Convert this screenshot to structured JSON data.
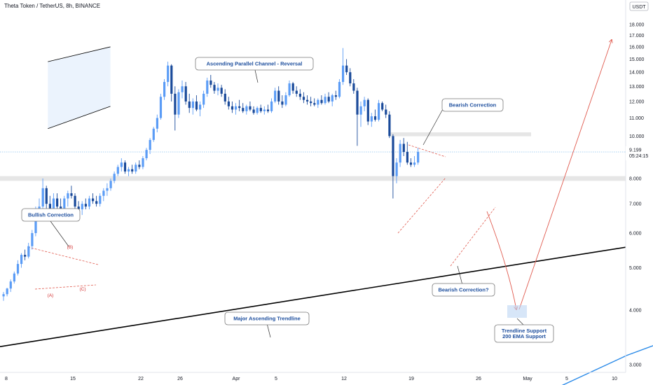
{
  "title": "Theta Token / TetherUS, 8h, BINANCE",
  "currency_badge": "USDT",
  "price_tag": {
    "price": "9.199",
    "countdown": "05:24:15"
  },
  "colors": {
    "bull": "#5b9cf6",
    "bear": "#1a4a9a",
    "trendline": "#000000",
    "ema": "#2a8ae8",
    "projection": "#e05a4e",
    "channel_fill": "#e6f0fc",
    "zone": "#e6e6e6",
    "annotation_text": "#1e4f9e"
  },
  "annotations": {
    "bullish_correction": "Bullish Correction",
    "ascending_channel": "Ascending Parallel Channel - Reversal",
    "bearish_correction": "Bearish Correction",
    "bearish_correction_q": "Bearish Correction?",
    "major_trendline": "Major Ascending Trendline",
    "trendline_support_1": "Trendline Support",
    "trendline_support_2": "200 EMA Support"
  },
  "pattern_labels": {
    "a": "(A)",
    "b": "(B)",
    "c": "(C)"
  },
  "chart_data": {
    "type": "candlestick",
    "title": "Theta Token / TetherUS, 8h, BINANCE",
    "y_scale": "log",
    "ylim": [
      2.9,
      18.8
    ],
    "y_ticks": [
      "18.000",
      "17.000",
      "16.000",
      "15.000",
      "14.000",
      "13.000",
      "12.000",
      "11.000",
      "10.000",
      "9.000",
      "8.000",
      "7.000",
      "6.000",
      "5.000",
      "4.000",
      "3.000"
    ],
    "x_ticks": [
      "8",
      "15",
      "22",
      "26",
      "Apr",
      "5",
      "12",
      "19",
      "26",
      "May",
      "5",
      "10"
    ],
    "grid": false,
    "last_price": 9.199,
    "candles": [
      {
        "o": 4.3,
        "h": 4.4,
        "l": 4.2,
        "c": 4.35
      },
      {
        "o": 4.35,
        "h": 4.5,
        "l": 4.3,
        "c": 4.48
      },
      {
        "o": 4.48,
        "h": 4.7,
        "l": 4.4,
        "c": 4.65
      },
      {
        "o": 4.65,
        "h": 4.9,
        "l": 4.6,
        "c": 4.85
      },
      {
        "o": 4.85,
        "h": 5.2,
        "l": 4.8,
        "c": 5.1
      },
      {
        "o": 5.1,
        "h": 5.4,
        "l": 5.0,
        "c": 5.35
      },
      {
        "o": 5.35,
        "h": 5.5,
        "l": 5.2,
        "c": 5.3
      },
      {
        "o": 5.3,
        "h": 5.7,
        "l": 5.25,
        "c": 5.6
      },
      {
        "o": 5.6,
        "h": 6.1,
        "l": 5.5,
        "c": 6.0
      },
      {
        "o": 6.0,
        "h": 6.9,
        "l": 5.9,
        "c": 6.7
      },
      {
        "o": 6.7,
        "h": 7.2,
        "l": 6.4,
        "c": 6.9
      },
      {
        "o": 6.9,
        "h": 8.0,
        "l": 6.7,
        "c": 7.6
      },
      {
        "o": 7.6,
        "h": 7.7,
        "l": 6.8,
        "c": 7.0
      },
      {
        "o": 7.0,
        "h": 7.3,
        "l": 6.5,
        "c": 6.6
      },
      {
        "o": 6.6,
        "h": 7.4,
        "l": 6.5,
        "c": 7.2
      },
      {
        "o": 7.2,
        "h": 7.4,
        "l": 6.8,
        "c": 6.9
      },
      {
        "o": 6.9,
        "h": 7.2,
        "l": 6.6,
        "c": 6.7
      },
      {
        "o": 6.7,
        "h": 7.3,
        "l": 6.6,
        "c": 7.2
      },
      {
        "o": 7.2,
        "h": 7.5,
        "l": 6.9,
        "c": 7.4
      },
      {
        "o": 7.4,
        "h": 7.7,
        "l": 7.2,
        "c": 7.3
      },
      {
        "o": 7.3,
        "h": 7.4,
        "l": 6.8,
        "c": 6.9
      },
      {
        "o": 6.9,
        "h": 7.1,
        "l": 6.7,
        "c": 6.8
      },
      {
        "o": 6.8,
        "h": 7.1,
        "l": 6.6,
        "c": 7.0
      },
      {
        "o": 7.0,
        "h": 7.2,
        "l": 6.8,
        "c": 6.9
      },
      {
        "o": 6.9,
        "h": 7.3,
        "l": 6.8,
        "c": 7.2
      },
      {
        "o": 7.2,
        "h": 7.4,
        "l": 7.0,
        "c": 7.1
      },
      {
        "o": 7.1,
        "h": 7.3,
        "l": 6.9,
        "c": 7.0
      },
      {
        "o": 7.0,
        "h": 7.4,
        "l": 6.9,
        "c": 7.3
      },
      {
        "o": 7.3,
        "h": 7.6,
        "l": 7.1,
        "c": 7.5
      },
      {
        "o": 7.5,
        "h": 7.8,
        "l": 7.3,
        "c": 7.6
      },
      {
        "o": 7.6,
        "h": 8.0,
        "l": 7.5,
        "c": 7.9
      },
      {
        "o": 7.9,
        "h": 8.3,
        "l": 7.8,
        "c": 8.2
      },
      {
        "o": 8.2,
        "h": 8.6,
        "l": 8.1,
        "c": 8.5
      },
      {
        "o": 8.5,
        "h": 8.9,
        "l": 8.3,
        "c": 8.7
      },
      {
        "o": 8.7,
        "h": 8.8,
        "l": 8.2,
        "c": 8.3
      },
      {
        "o": 8.3,
        "h": 8.5,
        "l": 8.1,
        "c": 8.4
      },
      {
        "o": 8.4,
        "h": 8.6,
        "l": 8.2,
        "c": 8.3
      },
      {
        "o": 8.3,
        "h": 8.7,
        "l": 8.2,
        "c": 8.6
      },
      {
        "o": 8.6,
        "h": 8.8,
        "l": 8.4,
        "c": 8.5
      },
      {
        "o": 8.5,
        "h": 9.0,
        "l": 8.4,
        "c": 8.9
      },
      {
        "o": 8.9,
        "h": 9.4,
        "l": 8.8,
        "c": 9.3
      },
      {
        "o": 9.3,
        "h": 9.9,
        "l": 9.1,
        "c": 9.8
      },
      {
        "o": 9.8,
        "h": 10.5,
        "l": 9.7,
        "c": 10.4
      },
      {
        "o": 10.4,
        "h": 11.2,
        "l": 10.2,
        "c": 11.0
      },
      {
        "o": 11.0,
        "h": 12.5,
        "l": 10.9,
        "c": 12.3
      },
      {
        "o": 12.3,
        "h": 13.5,
        "l": 12.1,
        "c": 13.3
      },
      {
        "o": 13.3,
        "h": 14.8,
        "l": 13.0,
        "c": 14.5
      },
      {
        "o": 14.5,
        "h": 14.6,
        "l": 12.0,
        "c": 12.5
      },
      {
        "o": 12.5,
        "h": 13.0,
        "l": 10.3,
        "c": 11.2
      },
      {
        "o": 11.2,
        "h": 12.8,
        "l": 11.0,
        "c": 12.6
      },
      {
        "o": 12.6,
        "h": 13.4,
        "l": 12.2,
        "c": 13.0
      },
      {
        "o": 13.0,
        "h": 13.3,
        "l": 11.8,
        "c": 12.0
      },
      {
        "o": 12.0,
        "h": 12.5,
        "l": 11.3,
        "c": 11.6
      },
      {
        "o": 11.6,
        "h": 12.2,
        "l": 11.2,
        "c": 12.0
      },
      {
        "o": 12.0,
        "h": 12.4,
        "l": 11.4,
        "c": 11.5
      },
      {
        "o": 11.5,
        "h": 12.0,
        "l": 11.1,
        "c": 11.8
      },
      {
        "o": 11.8,
        "h": 12.7,
        "l": 11.6,
        "c": 12.5
      },
      {
        "o": 12.5,
        "h": 13.6,
        "l": 12.3,
        "c": 13.4
      },
      {
        "o": 13.4,
        "h": 13.8,
        "l": 12.9,
        "c": 13.1
      },
      {
        "o": 13.1,
        "h": 13.3,
        "l": 12.5,
        "c": 12.7
      },
      {
        "o": 12.7,
        "h": 13.2,
        "l": 12.4,
        "c": 12.9
      },
      {
        "o": 12.9,
        "h": 13.1,
        "l": 12.3,
        "c": 12.5
      },
      {
        "o": 12.5,
        "h": 12.8,
        "l": 11.8,
        "c": 12.0
      },
      {
        "o": 12.0,
        "h": 12.3,
        "l": 11.5,
        "c": 11.7
      },
      {
        "o": 11.7,
        "h": 12.0,
        "l": 11.3,
        "c": 11.5
      },
      {
        "o": 11.5,
        "h": 11.9,
        "l": 11.2,
        "c": 11.7
      },
      {
        "o": 11.7,
        "h": 12.1,
        "l": 11.4,
        "c": 11.6
      },
      {
        "o": 11.6,
        "h": 11.9,
        "l": 11.3,
        "c": 11.4
      },
      {
        "o": 11.4,
        "h": 11.8,
        "l": 11.2,
        "c": 11.7
      },
      {
        "o": 11.7,
        "h": 12.0,
        "l": 11.4,
        "c": 11.5
      },
      {
        "o": 11.5,
        "h": 11.7,
        "l": 11.2,
        "c": 11.3
      },
      {
        "o": 11.3,
        "h": 11.7,
        "l": 11.2,
        "c": 11.6
      },
      {
        "o": 11.6,
        "h": 11.8,
        "l": 11.3,
        "c": 11.4
      },
      {
        "o": 11.4,
        "h": 11.7,
        "l": 11.2,
        "c": 11.5
      },
      {
        "o": 11.5,
        "h": 11.8,
        "l": 11.3,
        "c": 11.4
      },
      {
        "o": 11.4,
        "h": 12.2,
        "l": 11.3,
        "c": 12.0
      },
      {
        "o": 12.0,
        "h": 12.9,
        "l": 11.9,
        "c": 12.7
      },
      {
        "o": 12.7,
        "h": 13.0,
        "l": 11.8,
        "c": 12.0
      },
      {
        "o": 12.0,
        "h": 12.4,
        "l": 11.6,
        "c": 11.8
      },
      {
        "o": 11.8,
        "h": 12.6,
        "l": 11.7,
        "c": 12.4
      },
      {
        "o": 12.4,
        "h": 13.4,
        "l": 12.3,
        "c": 13.2
      },
      {
        "o": 13.2,
        "h": 13.3,
        "l": 12.5,
        "c": 12.7
      },
      {
        "o": 12.7,
        "h": 13.0,
        "l": 12.3,
        "c": 12.5
      },
      {
        "o": 12.5,
        "h": 12.8,
        "l": 12.1,
        "c": 12.3
      },
      {
        "o": 12.3,
        "h": 12.6,
        "l": 11.9,
        "c": 12.1
      },
      {
        "o": 12.1,
        "h": 12.4,
        "l": 11.8,
        "c": 12.0
      },
      {
        "o": 12.0,
        "h": 12.3,
        "l": 11.7,
        "c": 11.9
      },
      {
        "o": 11.9,
        "h": 12.2,
        "l": 11.7,
        "c": 11.8
      },
      {
        "o": 11.8,
        "h": 12.2,
        "l": 11.6,
        "c": 12.1
      },
      {
        "o": 12.1,
        "h": 12.4,
        "l": 11.8,
        "c": 11.9
      },
      {
        "o": 11.9,
        "h": 12.5,
        "l": 11.8,
        "c": 12.3
      },
      {
        "o": 12.3,
        "h": 12.6,
        "l": 11.9,
        "c": 12.0
      },
      {
        "o": 12.0,
        "h": 12.5,
        "l": 11.7,
        "c": 12.4
      },
      {
        "o": 12.4,
        "h": 12.7,
        "l": 12.1,
        "c": 12.3
      },
      {
        "o": 12.3,
        "h": 13.5,
        "l": 12.2,
        "c": 13.3
      },
      {
        "o": 13.3,
        "h": 15.9,
        "l": 13.1,
        "c": 14.5
      },
      {
        "o": 14.5,
        "h": 15.0,
        "l": 13.8,
        "c": 14.0
      },
      {
        "o": 14.0,
        "h": 14.3,
        "l": 13.0,
        "c": 13.2
      },
      {
        "o": 13.2,
        "h": 13.5,
        "l": 12.5,
        "c": 12.7
      },
      {
        "o": 12.7,
        "h": 12.9,
        "l": 9.5,
        "c": 11.2
      },
      {
        "o": 11.2,
        "h": 12.0,
        "l": 10.5,
        "c": 11.7
      },
      {
        "o": 11.7,
        "h": 12.3,
        "l": 11.4,
        "c": 12.1
      },
      {
        "o": 12.1,
        "h": 12.2,
        "l": 10.6,
        "c": 10.8
      },
      {
        "o": 10.8,
        "h": 11.3,
        "l": 10.5,
        "c": 11.1
      },
      {
        "o": 11.1,
        "h": 11.5,
        "l": 10.8,
        "c": 10.9
      },
      {
        "o": 10.9,
        "h": 12.1,
        "l": 10.8,
        "c": 11.9
      },
      {
        "o": 11.9,
        "h": 12.0,
        "l": 11.4,
        "c": 11.5
      },
      {
        "o": 11.5,
        "h": 11.8,
        "l": 11.0,
        "c": 11.2
      },
      {
        "o": 11.2,
        "h": 11.4,
        "l": 9.9,
        "c": 10.0
      },
      {
        "o": 10.0,
        "h": 10.1,
        "l": 7.2,
        "c": 8.1
      },
      {
        "o": 8.1,
        "h": 8.9,
        "l": 7.8,
        "c": 8.7
      },
      {
        "o": 8.7,
        "h": 9.8,
        "l": 8.5,
        "c": 9.6
      },
      {
        "o": 9.6,
        "h": 9.9,
        "l": 9.0,
        "c": 9.2
      },
      {
        "o": 9.2,
        "h": 9.7,
        "l": 8.6,
        "c": 8.7
      },
      {
        "o": 8.7,
        "h": 8.9,
        "l": 8.5,
        "c": 8.6
      },
      {
        "o": 8.6,
        "h": 9.0,
        "l": 8.5,
        "c": 8.7
      },
      {
        "o": 8.7,
        "h": 9.4,
        "l": 8.6,
        "c": 9.2
      }
    ],
    "ema200_points": [
      [
        15.3,
        2.6
      ],
      [
        17.5,
        3.15
      ],
      [
        20.2,
        3.8
      ],
      [
        22.7,
        4.4
      ],
      [
        24.9,
        4.8
      ],
      [
        26.8,
        5.07
      ]
    ],
    "trendline_points": [
      [
        0,
        3.3
      ],
      [
        45.0,
        5.57
      ]
    ],
    "channel": {
      "upper": [
        [
          13.0,
          14.8
        ],
        [
          30.5,
          16.0
        ]
      ],
      "lower": [
        [
          13.0,
          10.4
        ],
        [
          30.5,
          11.7
        ]
      ]
    },
    "zones": [
      {
        "from": 9.99,
        "to": 10.2
      },
      {
        "from": 7.9,
        "to": 8.1
      }
    ],
    "projection": [
      [
        35.2,
        9.9
      ],
      [
        37.5,
        6.9
      ],
      [
        38.0,
        5.15
      ],
      [
        40.0,
        6.9
      ],
      [
        45.0,
        17.0
      ]
    ]
  }
}
